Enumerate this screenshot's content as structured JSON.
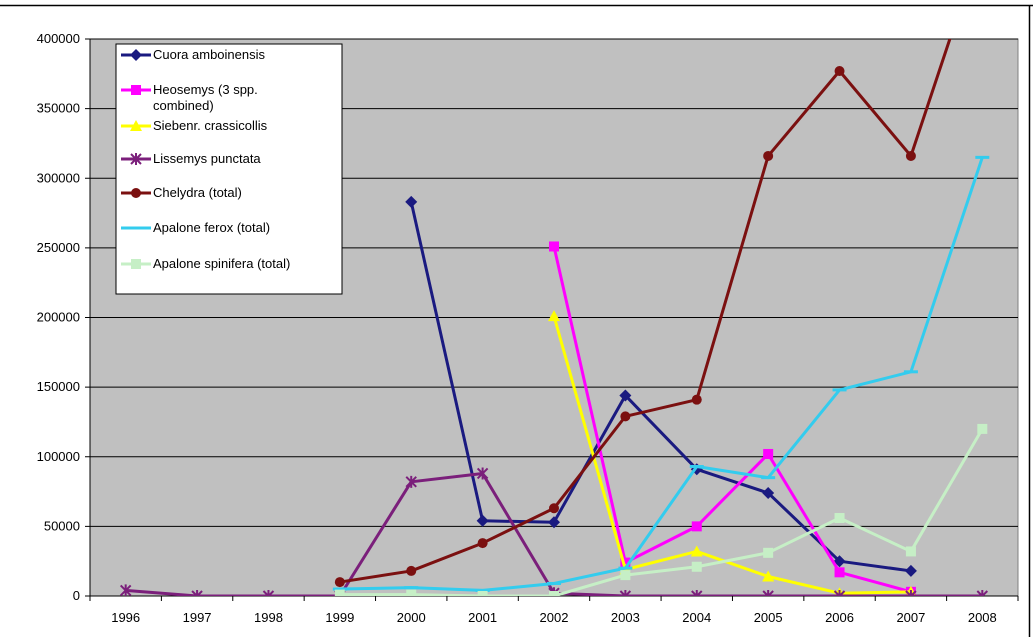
{
  "chart_data": {
    "type": "line",
    "title": "",
    "xlabel": "",
    "ylabel": "",
    "ylim": [
      0,
      400000
    ],
    "y_ticks": [
      "0",
      "50000",
      "100000",
      "150000",
      "200000",
      "250000",
      "300000",
      "350000",
      "400000"
    ],
    "categories": [
      "1996",
      "1997",
      "1998",
      "1999",
      "2000",
      "2001",
      "2002",
      "2003",
      "2004",
      "2005",
      "2006",
      "2007",
      "2008"
    ],
    "plot_background": "#c0c0c0",
    "grid": true,
    "legend_position": "top-left inside plot",
    "series": [
      {
        "name": "Cuora amboinensis",
        "color": "#1a1a80",
        "marker": "diamond",
        "values": [
          null,
          null,
          null,
          null,
          283000,
          54000,
          53000,
          144000,
          91000,
          74000,
          25000,
          18000,
          null
        ]
      },
      {
        "name": "Heosemys (3 spp. combined)",
        "color": "#ff00ff",
        "marker": "square",
        "values": [
          null,
          null,
          null,
          null,
          null,
          null,
          251000,
          24000,
          50000,
          102000,
          17000,
          3000,
          null
        ]
      },
      {
        "name": "Siebenr. crassicollis",
        "color": "#ffff00",
        "marker": "triangle",
        "values": [
          null,
          null,
          null,
          null,
          null,
          null,
          201000,
          19000,
          32000,
          14000,
          2000,
          3000,
          null
        ]
      },
      {
        "name": "Lissemys punctata",
        "color": "#7b1f7b",
        "marker": "star",
        "values": [
          4000,
          0,
          0,
          0,
          82000,
          88000,
          2000,
          0,
          0,
          0,
          0,
          0,
          0
        ]
      },
      {
        "name": "Chelydra (total)",
        "color": "#7b1010",
        "marker": "circle",
        "values": [
          null,
          null,
          null,
          10000,
          18000,
          38000,
          63000,
          129000,
          141000,
          316000,
          377000,
          316000,
          470000
        ]
      },
      {
        "name": "Apalone ferox (total)",
        "color": "#33ccee",
        "marker": "dash",
        "values": [
          null,
          null,
          null,
          5000,
          6000,
          4000,
          9000,
          20000,
          93000,
          85000,
          148000,
          161000,
          315000
        ]
      },
      {
        "name": "Apalone spinifera (total)",
        "color": "#c6efc6",
        "marker": "square",
        "values": [
          null,
          null,
          null,
          1000,
          1000,
          0,
          0,
          15000,
          21000,
          31000,
          56000,
          32000,
          120000
        ]
      }
    ]
  }
}
